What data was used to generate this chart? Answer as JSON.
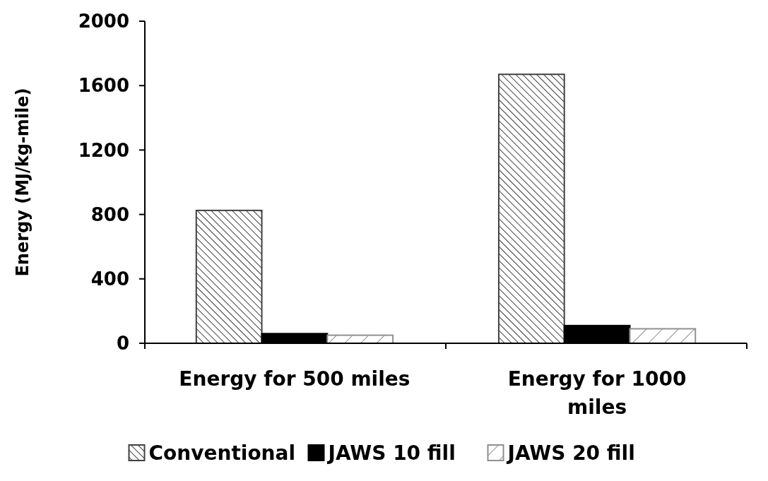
{
  "chart_data": {
    "type": "bar",
    "ylabel": "Energy (MJ/kg-mile)",
    "categories": [
      "Energy for 500 miles",
      "Energy for 1000 miles"
    ],
    "series": [
      {
        "name": "Conventional",
        "color": "#404040",
        "values": [
          825,
          1670
        ]
      },
      {
        "name": "JAWS 10 fill",
        "color": "#000000",
        "values": [
          60,
          110
        ]
      },
      {
        "name": "JAWS 20 fill",
        "color": "#909090",
        "values": [
          50,
          90
        ]
      }
    ],
    "ylim": [
      0,
      2000
    ],
    "yticks": [
      0,
      400,
      800,
      1200,
      1600,
      2000
    ],
    "grid": false,
    "legend": "bottom"
  }
}
